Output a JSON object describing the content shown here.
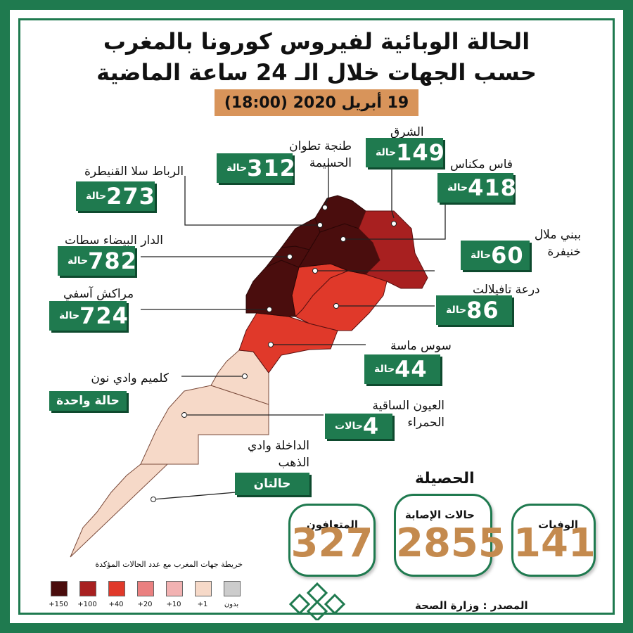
{
  "title": {
    "line1": "الحالة الوبائية لفيروس كورونا بالمغرب",
    "line2": "حسب الجهات خلال الـ 24 ساعة الماضية"
  },
  "date": "19 أبريل 2020 (18:00)",
  "regions": [
    {
      "id": "oriental",
      "name": "الشرق",
      "count": "149",
      "unit": "حالة"
    },
    {
      "id": "tanger",
      "name": "طنجة تطوان الحسيمة",
      "count": "312",
      "unit": "حالة"
    },
    {
      "id": "fes",
      "name": "فاس مكناس",
      "count": "418",
      "unit": "حالة"
    },
    {
      "id": "rabat",
      "name": "الرباط سلا القنيطرة",
      "count": "273",
      "unit": "حالة"
    },
    {
      "id": "beni",
      "name": "ببني ملال خنيفرة",
      "count": "60",
      "unit": "حالة"
    },
    {
      "id": "casa",
      "name": "الدار البيضاء سطات",
      "count": "782",
      "unit": "حالة"
    },
    {
      "id": "draa",
      "name": "درعة تافيلالت",
      "count": "86",
      "unit": "حالة"
    },
    {
      "id": "marrakech",
      "name": "مراكش آسفي",
      "count": "724",
      "unit": "حالة"
    },
    {
      "id": "souss",
      "name": "سوس ماسة",
      "count": "44",
      "unit": "حالة"
    },
    {
      "id": "guelmim",
      "name": "كلميم وادي نون",
      "count": "",
      "unit": "حالة واحدة"
    },
    {
      "id": "laayoune",
      "name": "العيون الساقية الحمراء",
      "count": "4",
      "unit": "حالات"
    },
    {
      "id": "dakhla",
      "name": "الداخلة وادي الذهب",
      "count": "",
      "unit": "حالتان"
    }
  ],
  "summary": {
    "title": "الحصيلة",
    "deaths_label": "الوفيات",
    "deaths": "141",
    "cases_label": "حالات الإصابة",
    "cases": "2855",
    "recovered_label": "المتعافون",
    "recovered": "327"
  },
  "legend": {
    "title": "خريطة جهات المغرب مع عدد الحالات المؤكدة",
    "items": [
      {
        "label": "+150",
        "color": "#4a0d0d"
      },
      {
        "label": "+100",
        "color": "#a82020"
      },
      {
        "label": "+40",
        "color": "#e0392a"
      },
      {
        "label": "+20",
        "color": "#ea8080"
      },
      {
        "label": "+10",
        "color": "#f2b2b2"
      },
      {
        "label": "+1",
        "color": "#f6d9c8"
      },
      {
        "label": "بدون",
        "color": "#cccccc"
      }
    ]
  },
  "source": "المصدر : وزارة الصحة",
  "logo": {
    "icon": "ministry-logo-icon"
  },
  "colors": {
    "brand_green": "#1f7a4f",
    "date_bg": "#d8945a",
    "stat_value": "#c48a4e"
  }
}
